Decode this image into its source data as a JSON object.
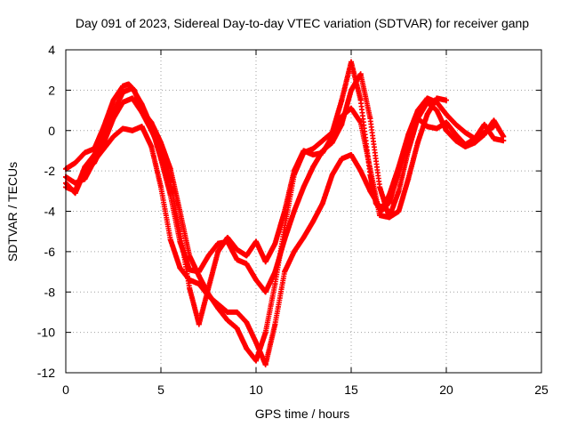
{
  "chart_data": {
    "type": "scatter",
    "title": "Day 091 of 2023, Sidereal Day-to-day VTEC variation (SDTVAR) for receiver ganp",
    "xlabel": "GPS time / hours",
    "ylabel": "SDTVAR / TECUs",
    "xlim": [
      0,
      25
    ],
    "ylim": [
      -12,
      4
    ],
    "xticks": [
      "0",
      "5",
      "10",
      "15",
      "20",
      "25"
    ],
    "yticks": [
      "-12",
      "-10",
      "-8",
      "-6",
      "-4",
      "-2",
      "0",
      "2",
      "4"
    ],
    "grid": true,
    "marker": "plus",
    "series_color": "#ff0000",
    "series": [
      {
        "x": [
          0,
          0.5,
          1,
          1.5,
          2,
          2.5,
          3,
          3.3,
          3.6,
          4,
          4.5,
          5,
          5.5,
          6,
          6.5,
          7,
          7.5,
          8,
          8.5,
          9,
          9.5,
          10,
          10.5,
          11,
          11.5,
          12,
          12.5,
          13,
          13.5,
          14,
          14.5,
          15,
          15.5,
          16,
          16.3,
          16.6,
          17,
          17.5,
          18,
          18.5,
          19,
          19.5,
          20,
          20.5,
          21,
          21.5,
          22,
          22.5,
          23
        ],
        "y": [
          -1.9,
          -1.6,
          -1.1,
          -0.9,
          0.2,
          1.5,
          2.2,
          2.3,
          2.0,
          1.0,
          0.4,
          -0.6,
          -1.9,
          -4.0,
          -6.2,
          -7.2,
          -8.1,
          -8.8,
          -9.4,
          -9.8,
          -10.8,
          -11.4,
          -10.0,
          -7.6,
          -4.8,
          -2.2,
          -1.1,
          -0.9,
          -0.5,
          -0.1,
          1.5,
          3.4,
          1.5,
          -2.2,
          -3.6,
          -4.0,
          -3.2,
          -1.8,
          -0.2,
          1.0,
          1.6,
          1.4,
          0.8,
          0.3,
          -0.1,
          -0.4,
          0.3,
          -0.4,
          -0.5
        ]
      },
      {
        "x": [
          0,
          0.5,
          1,
          1.5,
          2,
          2.5,
          3,
          3.5,
          4,
          4.5,
          5,
          5.5,
          6,
          6.5,
          7,
          7.5,
          8,
          8.5,
          9,
          9.5,
          10,
          10.5,
          11,
          11.5,
          12,
          12.5,
          13,
          13.5,
          14,
          14.5,
          15,
          15.5,
          16,
          16.5,
          17,
          17.5,
          18,
          18.5,
          19,
          19.5,
          20,
          20.5,
          21,
          21.5,
          22,
          22.5,
          23
        ],
        "y": [
          -2.6,
          -3.1,
          -2.0,
          -1.6,
          -0.6,
          0.6,
          1.4,
          1.6,
          0.9,
          0.0,
          -1.0,
          -2.6,
          -5.0,
          -7.8,
          -9.6,
          -7.8,
          -6.0,
          -5.3,
          -5.9,
          -6.2,
          -5.5,
          -6.5,
          -5.6,
          -4.0,
          -2.0,
          -1.0,
          -1.2,
          -1.1,
          -0.3,
          0.7,
          1.1,
          0.4,
          -1.9,
          -4.2,
          -4.3,
          -3.0,
          -1.0,
          0.6,
          1.4,
          1.0,
          0.0,
          -0.5,
          -0.8,
          -0.6,
          -0.2,
          0.5,
          -0.3
        ]
      },
      {
        "x": [
          0,
          0.5,
          1,
          1.5,
          2,
          2.5,
          3,
          3.5,
          4,
          4.5,
          5,
          5.5,
          6,
          6.5,
          7,
          7.5,
          8,
          8.5,
          9,
          9.5,
          10,
          10.5,
          11,
          11.5,
          12,
          12.5,
          13,
          13.5,
          14,
          14.5,
          15,
          15.5,
          16,
          16.5,
          17,
          17.5,
          18,
          18.5,
          19,
          19.5,
          20,
          20.5,
          21,
          21.5,
          22,
          22.5
        ],
        "y": [
          -2.3,
          -2.6,
          -2.4,
          -1.5,
          -0.9,
          -0.3,
          0.1,
          0.0,
          0.2,
          -0.8,
          -2.8,
          -5.4,
          -6.8,
          -7.4,
          -7.6,
          -8.2,
          -8.6,
          -9.0,
          -9.0,
          -9.5,
          -10.5,
          -11.6,
          -9.6,
          -7.0,
          -6.0,
          -5.3,
          -4.5,
          -3.6,
          -2.2,
          -1.4,
          -1.2,
          -2.0,
          -3.0,
          -3.8,
          -3.6,
          -2.0,
          -0.4,
          0.6,
          0.2,
          0.1,
          0.4,
          -0.2,
          -0.7,
          -0.4,
          -0.1,
          0.2
        ]
      },
      {
        "x": [
          0,
          0.5,
          1,
          1.5,
          2,
          2.5,
          3,
          3.5,
          4,
          4.5,
          5,
          5.5,
          6,
          6.5,
          7,
          7.5,
          8,
          8.5,
          9,
          9.5,
          10,
          10.5,
          11,
          11.5,
          12,
          12.5,
          13,
          13.5,
          14,
          14.5,
          15,
          15.5,
          16,
          16.5,
          17,
          17.5,
          18,
          18.5,
          19,
          19.5,
          20
        ],
        "y": [
          -2.8,
          -3.0,
          -1.8,
          -1.2,
          -0.3,
          0.9,
          1.9,
          2.1,
          1.3,
          0.2,
          -1.4,
          -3.2,
          -5.5,
          -6.9,
          -7.0,
          -6.2,
          -5.6,
          -5.5,
          -6.4,
          -6.6,
          -7.4,
          -8.0,
          -7.0,
          -5.4,
          -4.0,
          -2.8,
          -1.8,
          -1.0,
          -0.6,
          0.3,
          2.0,
          2.8,
          0.6,
          -2.8,
          -4.3,
          -4.0,
          -2.4,
          -0.6,
          0.8,
          1.6,
          1.5
        ]
      }
    ]
  }
}
